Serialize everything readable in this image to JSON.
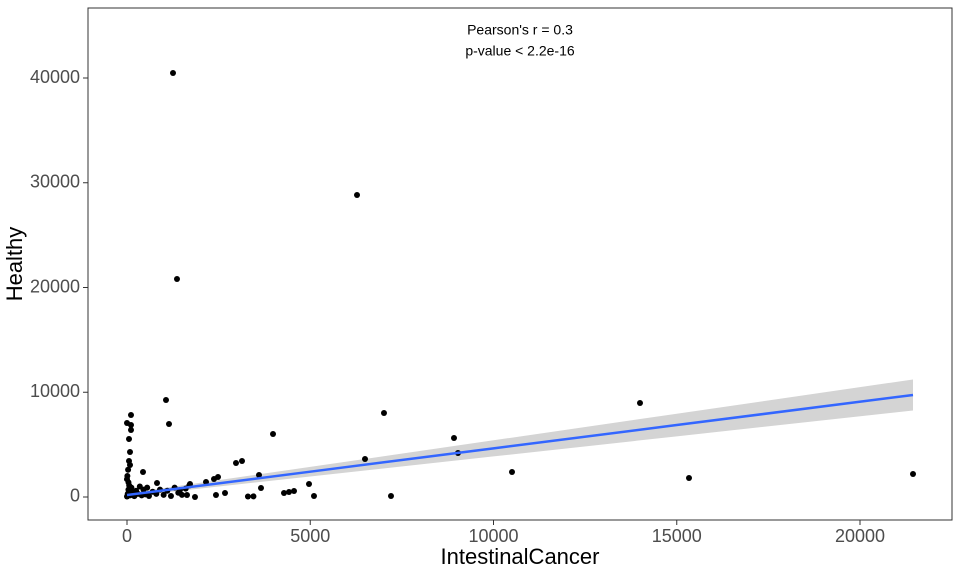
{
  "chart_data": {
    "type": "scatter",
    "annotations": [
      "Pearson's r = 0.3",
      "p-value < 2.2e-16"
    ],
    "x_label": "IntestinalCancer",
    "y_label": "Healthy",
    "xlim": [
      -1064,
      22510
    ],
    "ylim": [
      -2196,
      46683
    ],
    "xticks": [
      0,
      5000,
      10000,
      15000,
      20000
    ],
    "yticks": [
      0,
      10000,
      20000,
      30000,
      40000
    ],
    "series": [
      {
        "name": "points",
        "color": "#000000",
        "x": [
          1255,
          6276,
          1364,
          1064,
          1146,
          109,
          109,
          109,
          0,
          82,
          55,
          82,
          55,
          3984,
          7012,
          8922,
          9031,
          6494,
          10505,
          13997,
          15334,
          21446,
          7203,
          5102,
          4966,
          4420,
          4557,
          4284,
          3602,
          3656,
          3138,
          2974,
          2483,
          2374,
          2156,
          2674,
          2428,
          1719,
          819,
          1637,
          1855,
          1446,
          437,
          0,
          20,
          40,
          60,
          80,
          100,
          120,
          150,
          180,
          200,
          250,
          300,
          350,
          400,
          450,
          500,
          550,
          600,
          700,
          800,
          900,
          1000,
          1100,
          1200,
          1300,
          1400,
          1500,
          1600,
          1700,
          0,
          10,
          30,
          40,
          3300,
          3450
        ],
        "y": [
          40480,
          28830,
          20810,
          9260,
          6970,
          7830,
          6870,
          6400,
          7060,
          4300,
          3440,
          3050,
          5540,
          6010,
          8020,
          5630,
          4200,
          3630,
          2390,
          8970,
          1810,
          2200,
          100,
          100,
          1240,
          480,
          570,
          380,
          2100,
          860,
          3440,
          3250,
          1910,
          1720,
          1430,
          380,
          190,
          1240,
          1340,
          190,
          0,
          670,
          2390,
          50,
          300,
          700,
          1100,
          150,
          500,
          900,
          200,
          400,
          80,
          600,
          300,
          1000,
          150,
          700,
          250,
          900,
          100,
          500,
          300,
          700,
          200,
          600,
          100,
          900,
          400,
          200,
          800,
          1100,
          1700,
          2000,
          2600,
          1400,
          50,
          60
        ]
      }
    ],
    "fit": {
      "color": "#3366ff",
      "band_color": "#d4d4d4",
      "x": [
        0,
        5000,
        10000,
        15000,
        21446
      ],
      "y": [
        190,
        2417,
        4643,
        6870,
        9740
      ],
      "lower": [
        40,
        1957,
        3873,
        5790,
        8260
      ],
      "upper": [
        340,
        2877,
        5413,
        7950,
        11220
      ]
    }
  }
}
